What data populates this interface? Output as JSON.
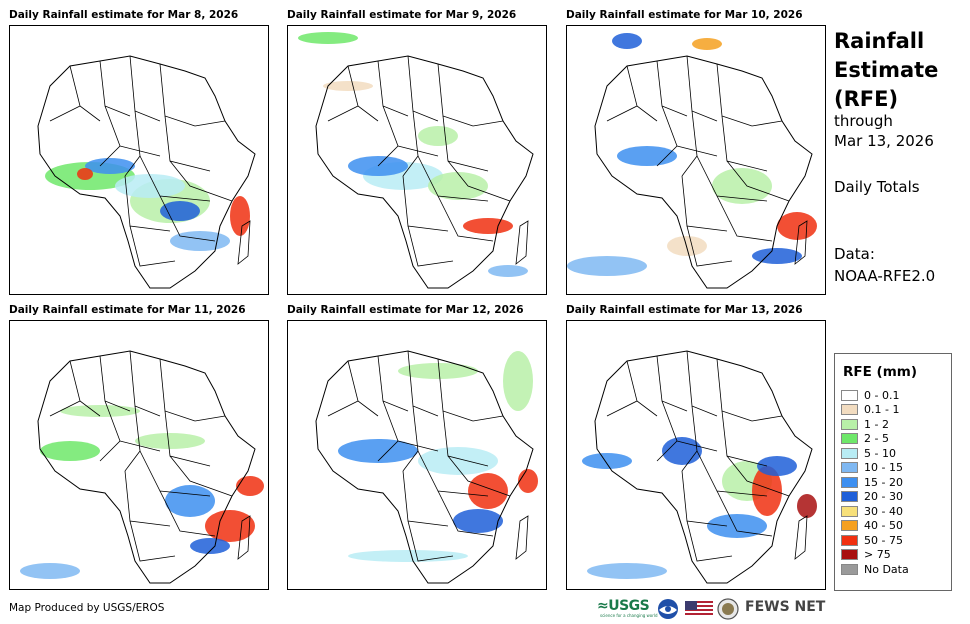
{
  "panels": [
    {
      "title": "Daily Rainfall estimate for Mar 8, 2026"
    },
    {
      "title": "Daily Rainfall estimate for Mar 9, 2026"
    },
    {
      "title": "Daily Rainfall estimate for Mar 10, 2026"
    },
    {
      "title": "Daily Rainfall estimate for Mar 11, 2026"
    },
    {
      "title": "Daily Rainfall estimate for Mar 12, 2026"
    },
    {
      "title": "Daily Rainfall estimate for Mar 13, 2026"
    }
  ],
  "side": {
    "title_line1": "Rainfall",
    "title_line2": "Estimate",
    "title_line3": "(RFE)",
    "through": "through",
    "through_date": "Mar 13, 2026",
    "totals": "Daily Totals",
    "data_label": "Data:",
    "data_source": "NOAA-RFE2.0"
  },
  "legend": {
    "title": "RFE (mm)",
    "items": [
      {
        "label": "0 - 0.1",
        "color": "#ffffff"
      },
      {
        "label": "0.1 - 1",
        "color": "#f2dcc0"
      },
      {
        "label": "1 - 2",
        "color": "#b8f0a8"
      },
      {
        "label": "2 - 5",
        "color": "#6ee86a"
      },
      {
        "label": "5 - 10",
        "color": "#b8ecf4"
      },
      {
        "label": "10 - 15",
        "color": "#7fb8f2"
      },
      {
        "label": "15 - 20",
        "color": "#3d8ff0"
      },
      {
        "label": "20 - 30",
        "color": "#1f5fd8"
      },
      {
        "label": "30 - 40",
        "color": "#f7e07a"
      },
      {
        "label": "40 - 50",
        "color": "#f5a020"
      },
      {
        "label": "50 - 75",
        "color": "#f03010"
      },
      {
        "label": "> 75",
        "color": "#a81010"
      },
      {
        "label": "No Data",
        "color": "#9a9a9a"
      }
    ]
  },
  "footer": {
    "produced_by": "Map Produced by USGS/EROS",
    "usgs": "≈USGS",
    "usgs_tagline": "science for a changing world",
    "fews": "FEWS NET"
  }
}
